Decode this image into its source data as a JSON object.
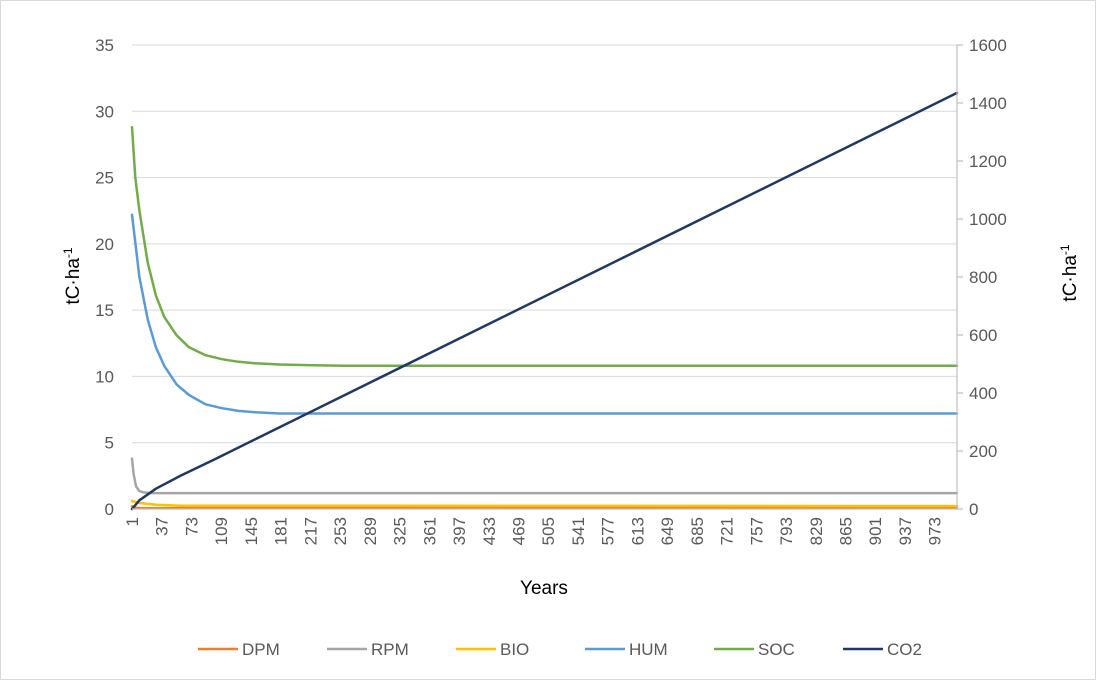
{
  "chart_data": {
    "type": "line",
    "title": "",
    "xlabel": "Years",
    "ylabel_left": "tC·ha",
    "ylabel_left_sup": "-1",
    "ylabel_right": "tC·ha",
    "ylabel_right_sup": "-1",
    "xlim": [
      1,
      1000
    ],
    "ylim_left": [
      0,
      35
    ],
    "ylim_right": [
      0,
      1600
    ],
    "y_left_ticks": [
      0,
      5,
      10,
      15,
      20,
      25,
      30,
      35
    ],
    "y_right_ticks": [
      0,
      200,
      400,
      600,
      800,
      1000,
      1200,
      1400,
      1600
    ],
    "x_tick_labels": [
      "1",
      "37",
      "73",
      "109",
      "145",
      "181",
      "217",
      "253",
      "289",
      "325",
      "361",
      "397",
      "433",
      "469",
      "505",
      "541",
      "577",
      "613",
      "649",
      "685",
      "721",
      "757",
      "793",
      "829",
      "865",
      "901",
      "937",
      "973"
    ],
    "grid": "horizontal",
    "legend_position": "bottom",
    "series": [
      {
        "name": "DPM",
        "color": "#ED7D31",
        "axis": "left",
        "x": [
          1,
          5,
          10,
          20,
          1000
        ],
        "y": [
          0.2,
          0.1,
          0.07,
          0.06,
          0.06
        ]
      },
      {
        "name": "RPM",
        "color": "#A5A5A5",
        "axis": "left",
        "x": [
          1,
          3,
          6,
          10,
          15,
          25,
          1000
        ],
        "y": [
          3.8,
          2.6,
          1.7,
          1.35,
          1.25,
          1.2,
          1.2
        ]
      },
      {
        "name": "BIO",
        "color": "#FFC000",
        "axis": "left",
        "x": [
          1,
          10,
          30,
          60,
          1000
        ],
        "y": [
          0.6,
          0.45,
          0.32,
          0.25,
          0.22
        ]
      },
      {
        "name": "HUM",
        "color": "#5B9BD5",
        "axis": "left",
        "x": [
          1,
          10,
          20,
          30,
          40,
          55,
          70,
          90,
          110,
          130,
          150,
          180,
          220,
          260,
          300,
          1000
        ],
        "y": [
          22.2,
          17.5,
          14.3,
          12.2,
          10.8,
          9.4,
          8.6,
          7.9,
          7.6,
          7.4,
          7.3,
          7.2,
          7.2,
          7.2,
          7.2,
          7.2
        ]
      },
      {
        "name": "SOC",
        "color": "#70AD47",
        "axis": "left",
        "x": [
          1,
          5,
          10,
          20,
          30,
          40,
          55,
          70,
          90,
          110,
          130,
          150,
          180,
          220,
          260,
          300,
          1000
        ],
        "y": [
          28.8,
          25.0,
          22.5,
          18.6,
          16.1,
          14.5,
          13.1,
          12.2,
          11.6,
          11.3,
          11.1,
          11.0,
          10.9,
          10.85,
          10.8,
          10.8,
          10.8
        ]
      },
      {
        "name": "CO2",
        "color": "#203864",
        "axis": "right",
        "x": [
          1,
          10,
          30,
          60,
          100,
          1000
        ],
        "y": [
          0,
          30,
          70,
          115,
          170,
          1435
        ]
      }
    ]
  }
}
